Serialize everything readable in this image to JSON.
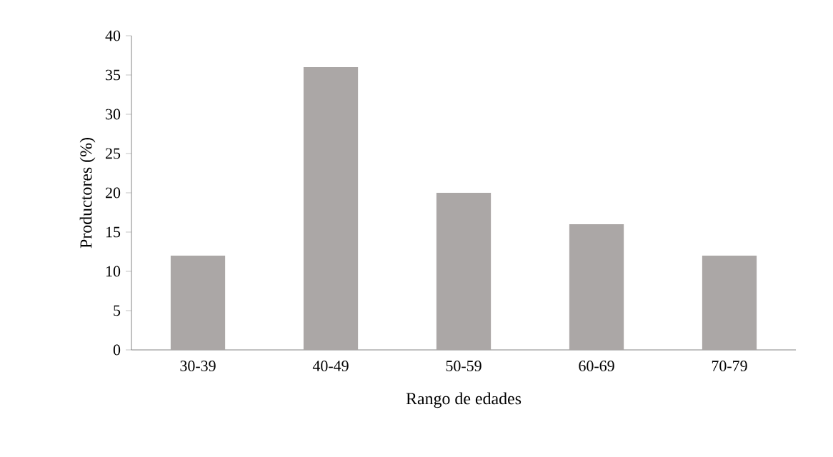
{
  "chart_data": {
    "type": "bar",
    "xlabel": "Rango de edades",
    "ylabel": "Productores (%)",
    "categories": [
      "30-39",
      "40-49",
      "50-59",
      "60-69",
      "70-79"
    ],
    "values": [
      12,
      36,
      20,
      16,
      12
    ],
    "color": "#aba7a6",
    "ylim": [
      0,
      40
    ],
    "yticks": [
      0,
      5,
      10,
      15,
      20,
      25,
      30,
      35,
      40
    ]
  }
}
